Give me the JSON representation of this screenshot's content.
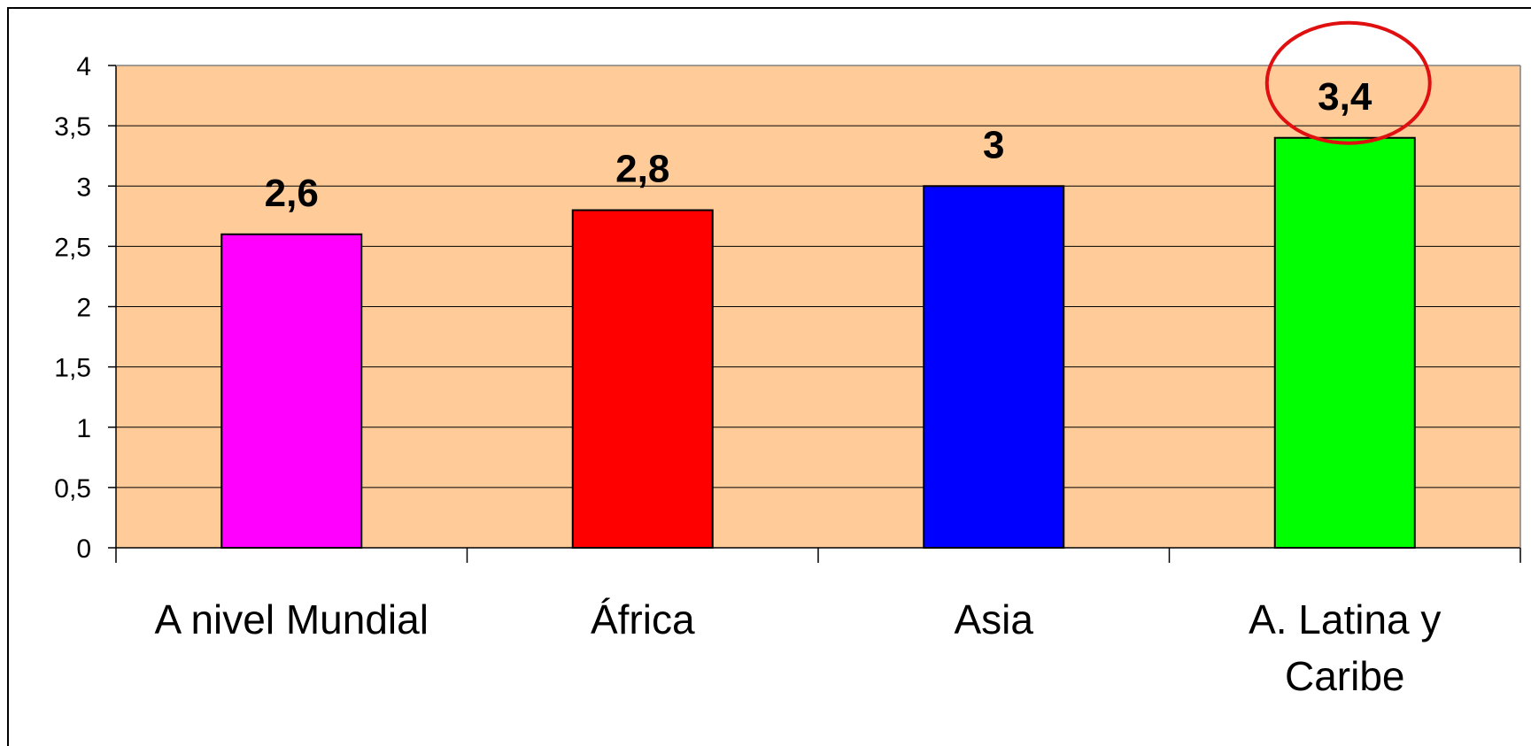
{
  "chart_data": {
    "type": "bar",
    "categories": [
      "A nivel  Mundial",
      "África",
      "Asia",
      "A. Latina y Caribe"
    ],
    "category_lines": [
      [
        "A nivel  Mundial"
      ],
      [
        "África"
      ],
      [
        "Asia"
      ],
      [
        "A. Latina y",
        "Caribe"
      ]
    ],
    "values": [
      2.6,
      2.8,
      3,
      3.4
    ],
    "data_labels": [
      "2,6",
      "2,8",
      "3",
      "3,4"
    ],
    "bar_colors": [
      "#ff00ff",
      "#ff0000",
      "#0000ff",
      "#00ff00"
    ],
    "ylim": [
      0,
      4
    ],
    "yticks": [
      0,
      0.5,
      1,
      1.5,
      2,
      2.5,
      3,
      3.5,
      4
    ],
    "ytick_labels": [
      "0",
      "0,5",
      "1",
      "1,5",
      "2",
      "2,5",
      "3",
      "3,5",
      "4"
    ],
    "grid": true,
    "plot_background": "#ffcc99",
    "highlight_color": "#e01010",
    "highlighted_category": "A. Latina y Caribe",
    "title": "",
    "xlabel": "",
    "ylabel": ""
  }
}
